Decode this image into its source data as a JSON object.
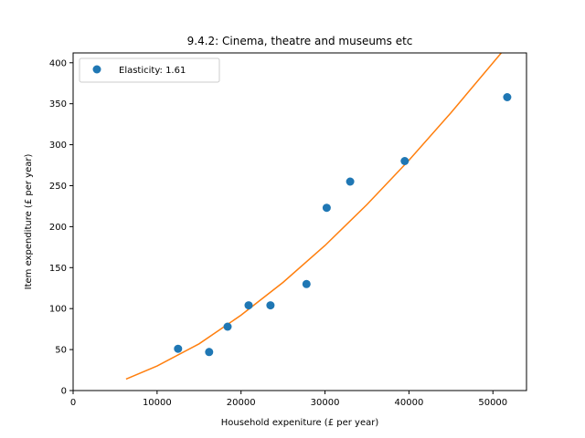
{
  "chart_data": {
    "type": "scatter",
    "title": "9.4.2: Cinema, theatre and museums etc",
    "xlabel": "Household expeniture (£ per year)",
    "ylabel": "Item expenditure (£ per year)",
    "xlim": [
      0,
      54000
    ],
    "ylim": [
      0,
      412
    ],
    "xticks": [
      0,
      10000,
      20000,
      30000,
      40000,
      50000
    ],
    "yticks": [
      0,
      50,
      100,
      150,
      200,
      250,
      300,
      350,
      400
    ],
    "grid": false,
    "legend_position": "top-left",
    "series": [
      {
        "name": "Elasticity: 1.61",
        "kind": "scatter",
        "color": "#1f77b4",
        "x": [
          12500,
          16200,
          18400,
          20900,
          23500,
          27800,
          30200,
          33000,
          39500,
          51700
        ],
        "y": [
          51,
          47,
          78,
          104,
          104,
          130,
          223,
          255,
          280,
          358
        ]
      },
      {
        "kind": "line",
        "color": "#ff7f0e",
        "elasticity": 1.61,
        "x": [
          6300,
          10000,
          15000,
          20000,
          25000,
          30000,
          35000,
          40000,
          45000,
          51000
        ],
        "y": [
          14,
          30,
          57,
          92,
          132,
          177,
          227,
          281,
          339,
          412
        ]
      }
    ]
  }
}
